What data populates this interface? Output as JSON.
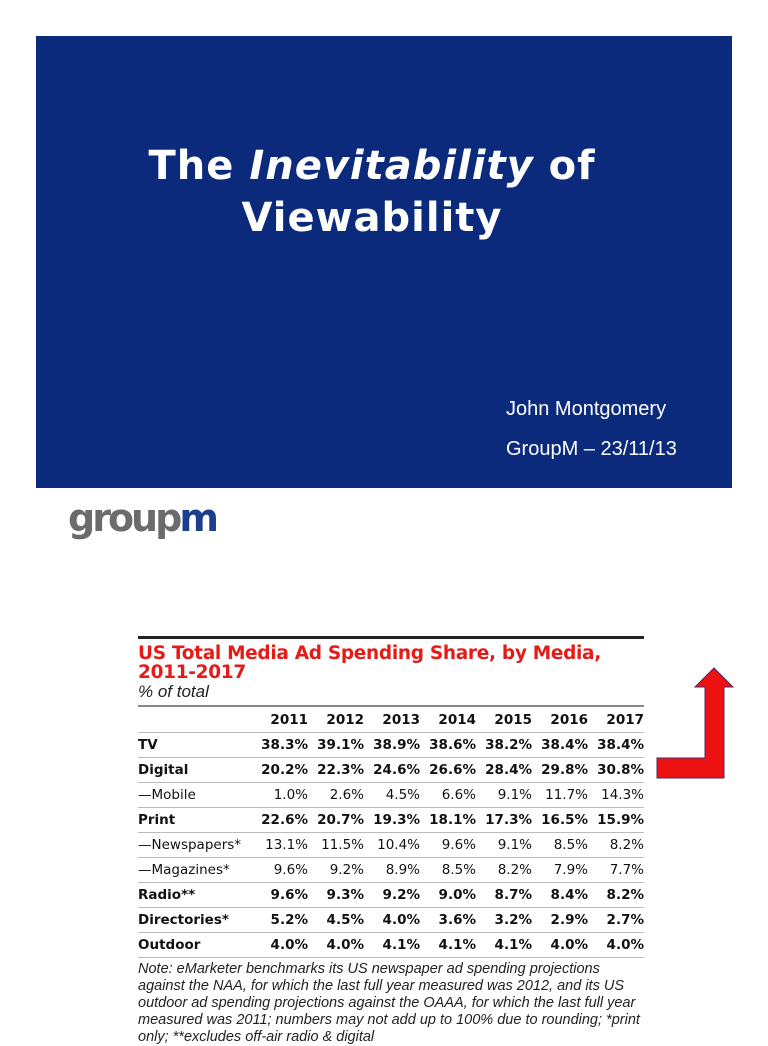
{
  "slide": {
    "title_prefix": "The ",
    "title_italic": "Inevitability",
    "title_suffix": " of",
    "title_line2": "Viewability",
    "author": "John Montgomery",
    "org_date": "GroupM – 23/11/13"
  },
  "logo": {
    "text_gray": "group",
    "text_blue": "m",
    "colors": {
      "gray": "#6b6b6b",
      "blue": "#1d3e8f"
    }
  },
  "table": {
    "title_line1": "US Total Media Ad Spending Share, by Media,",
    "title_line2": "2011-2017",
    "subtitle": "% of total",
    "years": [
      "2011",
      "2012",
      "2013",
      "2014",
      "2015",
      "2016",
      "2017"
    ],
    "rows": [
      {
        "label": "TV",
        "values": [
          "38.3%",
          "39.1%",
          "38.9%",
          "38.6%",
          "38.2%",
          "38.4%",
          "38.4%"
        ]
      },
      {
        "label": "Digital",
        "values": [
          "20.2%",
          "22.3%",
          "24.6%",
          "26.6%",
          "28.4%",
          "29.8%",
          "30.8%"
        ]
      },
      {
        "label": "—Mobile",
        "values": [
          "1.0%",
          "2.6%",
          "4.5%",
          "6.6%",
          "9.1%",
          "11.7%",
          "14.3%"
        ]
      },
      {
        "label": "Print",
        "values": [
          "22.6%",
          "20.7%",
          "19.3%",
          "18.1%",
          "17.3%",
          "16.5%",
          "15.9%"
        ]
      },
      {
        "label": "—Newspapers*",
        "values": [
          "13.1%",
          "11.5%",
          "10.4%",
          "9.6%",
          "9.1%",
          "8.5%",
          "8.2%"
        ]
      },
      {
        "label": "—Magazines*",
        "values": [
          "9.6%",
          "9.2%",
          "8.9%",
          "8.5%",
          "8.2%",
          "7.9%",
          "7.7%"
        ]
      },
      {
        "label": "Radio**",
        "values": [
          "9.6%",
          "9.3%",
          "9.2%",
          "9.0%",
          "8.7%",
          "8.4%",
          "8.2%"
        ]
      },
      {
        "label": "Directories*",
        "values": [
          "5.2%",
          "4.5%",
          "4.0%",
          "3.6%",
          "3.2%",
          "2.9%",
          "2.7%"
        ]
      },
      {
        "label": "Outdoor",
        "values": [
          "4.0%",
          "4.0%",
          "4.1%",
          "4.1%",
          "4.1%",
          "4.0%",
          "4.0%"
        ]
      }
    ],
    "note": "Note: eMarketer benchmarks its US newspaper ad spending projections against the NAA, for which the last full year measured was 2012, and its US outdoor ad spending projections against the OAAA, for which the last full year measured was 2011; numbers may not add up to 100% due to rounding; *print only; **excludes off-air radio & digital"
  },
  "colors": {
    "slide_bg": "#0b2a7c",
    "table_title": "#e41b17",
    "arrow": "#ee1111"
  }
}
